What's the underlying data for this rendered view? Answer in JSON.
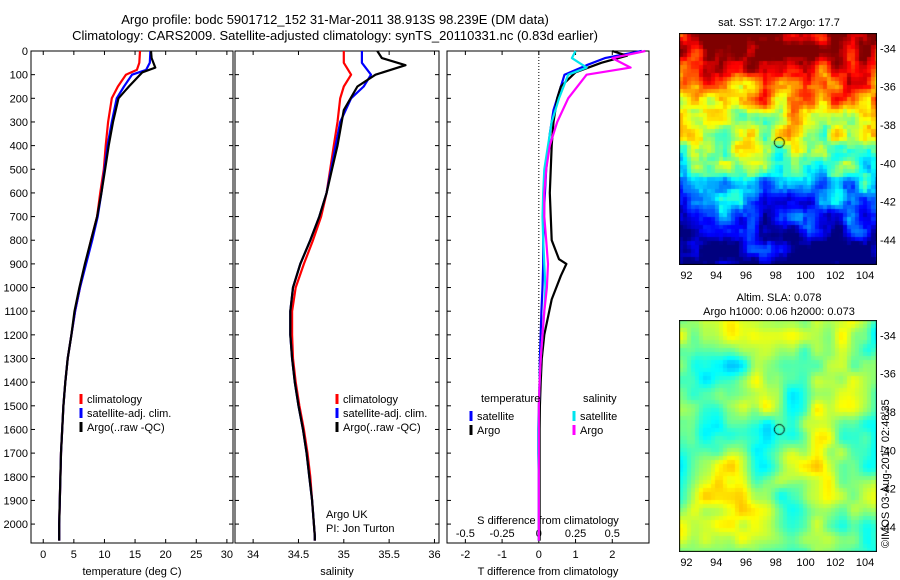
{
  "header": {
    "line1": "Argo profile: bodc 5901712_152 31-Mar-2011 38.913S 98.239E (DM data)",
    "line2": "Climatology: CARS2009. Satellite-adjusted climatology: synTS_20110331.nc (0.83d earlier)"
  },
  "credit": "©IMOS 03-Aug-2017 02:48:35",
  "colors": {
    "climatology": "#ff0000",
    "satellite": "#0000ff",
    "argo": "#000000",
    "sal_satellite": "#00e5ee",
    "sal_argo": "#ff00ff"
  },
  "chart_data": [
    {
      "type": "line",
      "id": "temperature",
      "xlabel": "temperature (deg C)",
      "xlim": [
        -2,
        31
      ],
      "xticks": [
        0,
        5,
        10,
        15,
        20,
        25,
        30
      ],
      "ylim": [
        0,
        2080
      ],
      "yticks": [
        0,
        100,
        200,
        300,
        400,
        500,
        600,
        700,
        800,
        900,
        1000,
        1100,
        1200,
        1300,
        1400,
        1500,
        1600,
        1700,
        1800,
        1900,
        2000
      ],
      "legend": [
        "climatology",
        "satellite-adj. clim.",
        "Argo(..raw -QC)"
      ],
      "series": [
        {
          "name": "climatology",
          "color": "#ff0000",
          "x": [
            15.8,
            15.7,
            15.3,
            13.5,
            12.2,
            11.2,
            10.6,
            10.2,
            9.9,
            9.3,
            8.8,
            7.8,
            6.9,
            6.0,
            5.2,
            4.6,
            4.0,
            3.6,
            3.3,
            3.1,
            2.9,
            2.8,
            2.7,
            2.6,
            2.6
          ],
          "y": [
            0,
            50,
            80,
            100,
            150,
            200,
            300,
            400,
            500,
            600,
            700,
            800,
            900,
            1000,
            1100,
            1200,
            1300,
            1400,
            1500,
            1600,
            1700,
            1800,
            1900,
            2000,
            2070
          ]
        },
        {
          "name": "satellite-adj. clim.",
          "color": "#0000ff",
          "x": [
            17.5,
            17.4,
            16.8,
            14.5,
            13.2,
            12.0,
            11.2,
            10.5,
            10.0,
            9.5,
            8.9,
            8.0,
            7.0,
            6.0,
            5.2,
            4.6,
            4.0,
            3.6,
            3.3,
            3.1,
            2.9,
            2.8,
            2.7,
            2.6,
            2.6
          ],
          "y": [
            0,
            50,
            80,
            100,
            150,
            200,
            300,
            400,
            500,
            600,
            700,
            800,
            900,
            1000,
            1100,
            1200,
            1300,
            1400,
            1500,
            1600,
            1700,
            1800,
            1900,
            2000,
            2070
          ]
        },
        {
          "name": "Argo(..raw -QC)",
          "color": "#000000",
          "x": [
            17.6,
            17.7,
            18.3,
            16.2,
            14.0,
            12.3,
            11.4,
            10.7,
            10.1,
            9.5,
            8.8,
            7.8,
            6.8,
            5.9,
            5.1,
            4.6,
            4.0,
            3.6,
            3.3,
            3.1,
            2.9,
            2.8,
            2.7,
            2.6,
            2.6
          ],
          "y": [
            0,
            30,
            70,
            90,
            150,
            200,
            300,
            400,
            500,
            600,
            700,
            800,
            900,
            1000,
            1100,
            1200,
            1300,
            1400,
            1500,
            1600,
            1700,
            1800,
            1900,
            2000,
            2070
          ]
        }
      ]
    },
    {
      "type": "line",
      "id": "salinity",
      "xlabel": "salinity",
      "xlim": [
        33.8,
        36.05
      ],
      "xticks": [
        34,
        34.5,
        35,
        35.5,
        36
      ],
      "xticklabels": [
        "34",
        "34.5",
        "35",
        "35.5",
        "36"
      ],
      "ylim": [
        0,
        2080
      ],
      "legend": [
        "climatology",
        "satellite-adj. clim.",
        "Argo(..raw -QC)"
      ],
      "annotation": [
        "Argo UK",
        "PI: Jon Turton"
      ],
      "series": [
        {
          "name": "climatology",
          "color": "#ff0000",
          "x": [
            35.0,
            35.0,
            35.08,
            35.0,
            34.96,
            34.93,
            34.89,
            34.85,
            34.81,
            34.75,
            34.66,
            34.56,
            34.47,
            34.43,
            34.43,
            34.44,
            34.47,
            34.51,
            34.56,
            34.6,
            34.63,
            34.65,
            34.67,
            34.68,
            34.68
          ],
          "y": [
            0,
            50,
            100,
            150,
            200,
            300,
            400,
            500,
            600,
            700,
            800,
            900,
            1000,
            1100,
            1200,
            1300,
            1400,
            1500,
            1600,
            1700,
            1800,
            1900,
            2000,
            2050,
            2070
          ]
        },
        {
          "name": "satellite-adj. clim.",
          "color": "#0000ff",
          "x": [
            35.2,
            35.2,
            35.3,
            35.22,
            35.08,
            34.96,
            34.91,
            34.86,
            34.81,
            34.73,
            34.63,
            34.52,
            34.44,
            34.41,
            34.41,
            34.43,
            34.46,
            34.5,
            34.55,
            34.59,
            34.62,
            34.65,
            34.67,
            34.68,
            34.68
          ],
          "y": [
            0,
            50,
            100,
            150,
            200,
            300,
            400,
            500,
            600,
            700,
            800,
            900,
            1000,
            1100,
            1200,
            1300,
            1400,
            1500,
            1600,
            1700,
            1800,
            1900,
            2000,
            2050,
            2070
          ]
        },
        {
          "name": "Argo(..raw -QC)",
          "color": "#000000",
          "x": [
            35.37,
            35.42,
            35.68,
            35.35,
            35.15,
            35.0,
            34.93,
            34.87,
            34.81,
            34.73,
            34.63,
            34.52,
            34.44,
            34.41,
            34.41,
            34.43,
            34.46,
            34.5,
            34.55,
            34.59,
            34.62,
            34.65,
            34.67,
            34.68,
            34.68
          ],
          "y": [
            0,
            30,
            60,
            100,
            150,
            250,
            400,
            500,
            600,
            700,
            800,
            900,
            1000,
            1100,
            1200,
            1300,
            1400,
            1500,
            1600,
            1700,
            1800,
            1900,
            2000,
            2050,
            2070
          ]
        }
      ]
    },
    {
      "type": "line",
      "id": "difference",
      "xlabel": "T difference from climatology",
      "xlabel2": "S difference from climatology",
      "xlim": [
        -2.5,
        3.0
      ],
      "xticks": [
        -2,
        -1,
        0,
        1,
        2
      ],
      "topticks": [
        "-0.5",
        "-0.25",
        "0",
        "0.25",
        "0.5"
      ],
      "ylim": [
        0,
        2080
      ],
      "legend_headers": [
        "temperature",
        "salinity"
      ],
      "legend": [
        [
          "satellite",
          "Argo"
        ],
        [
          "satellite",
          "Argo"
        ]
      ],
      "series": [
        {
          "name": "satellite",
          "color": "#0000ff",
          "x": [
            2.8,
            1.8,
            1.3,
            0.7,
            0.6,
            0.4,
            0.3,
            0.2,
            0.15,
            0.12,
            0.12,
            0.1,
            0.07,
            0.05,
            0.03,
            0.02,
            0.01,
            0.0,
            0.0,
            0.0,
            0.0,
            0.0,
            0.0,
            0.0
          ],
          "y": [
            0,
            30,
            60,
            100,
            150,
            250,
            350,
            500,
            650,
            800,
            900,
            1000,
            1100,
            1200,
            1300,
            1400,
            1500,
            1600,
            1700,
            1800,
            1900,
            2000,
            2050,
            2070
          ]
        },
        {
          "name": "Argo",
          "color": "#000000",
          "x": [
            2.0,
            2.4,
            1.7,
            1.0,
            0.6,
            0.5,
            0.4,
            0.35,
            0.3,
            0.35,
            0.55,
            0.75,
            0.6,
            0.35,
            0.15,
            0.08,
            0.05,
            0.03,
            0.02,
            0.02,
            0.02,
            0.02,
            0.02,
            0.02
          ],
          "y": [
            0,
            20,
            50,
            90,
            150,
            200,
            300,
            400,
            600,
            800,
            880,
            900,
            950,
            1050,
            1200,
            1300,
            1400,
            1500,
            1600,
            1700,
            1800,
            1900,
            2000,
            2070
          ]
        },
        {
          "name": "satellite",
          "color": "#00e5ee",
          "x": [
            1.0,
            0.9,
            1.3,
            0.8,
            0.55,
            0.35,
            0.25,
            0.15,
            0.12,
            0.1,
            0.12,
            0.15,
            0.18,
            0.15,
            0.1,
            0.05,
            0.02,
            0.0,
            -0.02,
            -0.02,
            0.0,
            0.0,
            0.0,
            0.0
          ],
          "y": [
            0,
            30,
            70,
            100,
            200,
            300,
            400,
            500,
            600,
            700,
            800,
            900,
            1000,
            1100,
            1200,
            1300,
            1400,
            1500,
            1600,
            1700,
            1800,
            1900,
            2000,
            2070
          ]
        },
        {
          "name": "Argo",
          "color": "#ff00ff",
          "x": [
            2.9,
            2.0,
            2.5,
            1.3,
            0.8,
            0.5,
            0.3,
            0.2,
            0.15,
            0.15,
            0.2,
            0.25,
            0.22,
            0.15,
            0.1,
            0.05,
            0.02,
            0.0,
            0.0,
            0.0,
            0.0,
            0.0,
            0.0,
            0.0
          ],
          "y": [
            0,
            30,
            70,
            100,
            200,
            300,
            400,
            500,
            600,
            700,
            800,
            900,
            1000,
            1100,
            1200,
            1300,
            1400,
            1500,
            1600,
            1700,
            1800,
            1900,
            2000,
            2070
          ]
        }
      ]
    },
    {
      "type": "heatmap",
      "id": "sst-map",
      "title": "sat. SST: 17.2 Argo: 17.7",
      "xticks": [
        92,
        94,
        96,
        98,
        100,
        102,
        104
      ],
      "yticks": [
        -34,
        -36,
        -38,
        -40,
        -42,
        -44
      ],
      "xlim": [
        91.5,
        104.8
      ],
      "ylim": [
        -45.3,
        -33.2
      ],
      "marker": [
        98.24,
        -38.91
      ]
    },
    {
      "type": "heatmap",
      "id": "sla-map",
      "title": [
        "Altim. SLA: 0.078",
        "Argo h1000: 0.06 h2000: 0.073"
      ],
      "xticks": [
        92,
        94,
        96,
        98,
        100,
        102,
        104
      ],
      "yticks": [
        -34,
        -36,
        -38,
        -40,
        -42,
        -44
      ],
      "xlim": [
        91.5,
        104.8
      ],
      "ylim": [
        -45.3,
        -33.2
      ],
      "marker": [
        98.24,
        -38.91
      ]
    }
  ]
}
